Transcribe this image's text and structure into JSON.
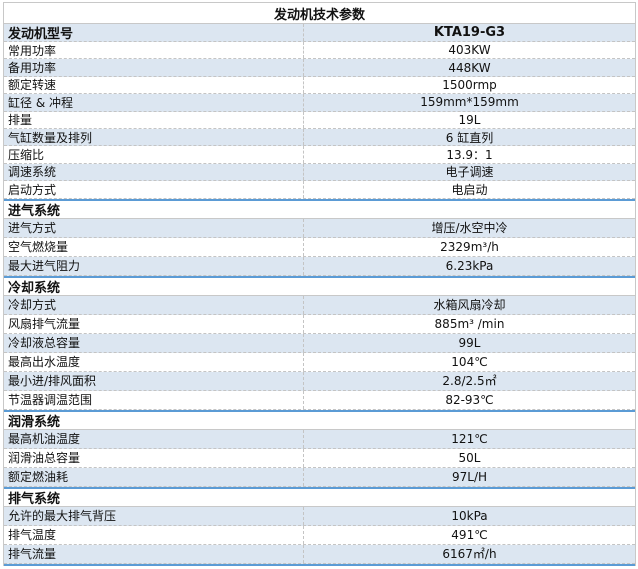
{
  "title": "发动机技术参数",
  "header": {
    "label": "发动机型号",
    "value": "KTA19-G3"
  },
  "general": [
    {
      "label": "常用功率",
      "value": "403KW"
    },
    {
      "label": "备用功率",
      "value": "448KW"
    },
    {
      "label": "额定转速",
      "value": "1500rmp"
    },
    {
      "label": "缸径 & 冲程",
      "value": "159mm*159mm"
    },
    {
      "label": "排量",
      "value": "19L"
    },
    {
      "label": "气缸数量及排列",
      "value": "6 缸直列"
    },
    {
      "label": "压缩比",
      "value": "13.9：1"
    },
    {
      "label": "调速系统",
      "value": "电子调速"
    },
    {
      "label": "启动方式",
      "value": "电启动"
    }
  ],
  "sections": [
    {
      "title": "进气系统",
      "rows": [
        {
          "label": "进气方式",
          "value": "增压/水空中冷"
        },
        {
          "label": "空气燃烧量",
          "value": "2329m³/h"
        },
        {
          "label": "最大进气阻力",
          "value": "6.23kPa"
        }
      ]
    },
    {
      "title": "冷却系统",
      "rows": [
        {
          "label": "冷却方式",
          "value": "水箱风扇冷却"
        },
        {
          "label": "风扇排气流量",
          "value": "885m³ /min"
        },
        {
          "label": "冷却液总容量",
          "value": "99L"
        },
        {
          "label": "最高出水温度",
          "value": "104℃"
        },
        {
          "label": "最小进/排风面积",
          "value": "2.8/2.5㎡"
        },
        {
          "label": "节温器调温范围",
          "value": "82-93℃"
        }
      ]
    },
    {
      "title": "润滑系统",
      "rows": [
        {
          "label": "最高机油温度",
          "value": "121℃"
        },
        {
          "label": "润滑油总容量",
          "value": "50L"
        },
        {
          "label": "额定燃油耗",
          "value": "97L/H"
        }
      ]
    },
    {
      "title": "排气系统",
      "rows": [
        {
          "label": "允许的最大排气背压",
          "value": "10kPa"
        },
        {
          "label": "排气温度",
          "value": "491℃"
        },
        {
          "label": "排气流量",
          "value": "6167㎡/h"
        }
      ]
    }
  ]
}
